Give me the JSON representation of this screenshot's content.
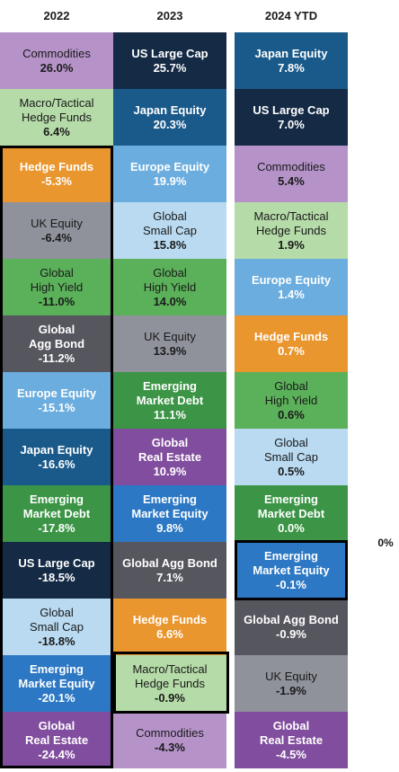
{
  "chart_data": {
    "type": "table",
    "title": "",
    "zero_label": "0%",
    "columns": [
      {
        "year": "2022",
        "cells": [
          {
            "name": "Commodities",
            "value": "26.0%",
            "color": "#b593c9",
            "text": "#1a1a1a",
            "bold_name": false
          },
          {
            "name": "Macro/Tactical\nHedge Funds",
            "value": "6.4%",
            "color": "#b5dba8",
            "text": "#1a1a1a",
            "bold_name": false
          },
          {
            "name": "Hedge Funds",
            "value": "-5.3%",
            "color": "#ea962f",
            "text": "#ffffff",
            "bold_name": true
          },
          {
            "name": "UK Equity",
            "value": "-6.4%",
            "color": "#8f929b",
            "text": "#1a1a1a",
            "bold_name": false
          },
          {
            "name": "Global\nHigh Yield",
            "value": "-11.0%",
            "color": "#5bb15a",
            "text": "#1a1a1a",
            "bold_name": false
          },
          {
            "name": "Global\nAgg Bond",
            "value": "-11.2%",
            "color": "#56565f",
            "text": "#ffffff",
            "bold_name": true
          },
          {
            "name": "Europe Equity",
            "value": "-15.1%",
            "color": "#6badde",
            "text": "#ffffff",
            "bold_name": true
          },
          {
            "name": "Japan Equity",
            "value": "-16.6%",
            "color": "#1a5a8a",
            "text": "#ffffff",
            "bold_name": true
          },
          {
            "name": "Emerging\nMarket Debt",
            "value": "-17.8%",
            "color": "#3c9546",
            "text": "#ffffff",
            "bold_name": true
          },
          {
            "name": "US Large Cap",
            "value": "-18.5%",
            "color": "#142a45",
            "text": "#ffffff",
            "bold_name": true
          },
          {
            "name": "Global\nSmall Cap",
            "value": "-18.8%",
            "color": "#b9daf1",
            "text": "#1a1a1a",
            "bold_name": false
          },
          {
            "name": "Emerging\nMarket Equity",
            "value": "-20.1%",
            "color": "#2d78c4",
            "text": "#ffffff",
            "bold_name": true
          },
          {
            "name": "Global\nReal Estate",
            "value": "-24.4%",
            "color": "#814d9e",
            "text": "#ffffff",
            "bold_name": true
          }
        ]
      },
      {
        "year": "2023",
        "cells": [
          {
            "name": "US Large Cap",
            "value": "25.7%",
            "color": "#142a45",
            "text": "#ffffff",
            "bold_name": true
          },
          {
            "name": "Japan Equity",
            "value": "20.3%",
            "color": "#1a5a8a",
            "text": "#ffffff",
            "bold_name": true
          },
          {
            "name": "Europe Equity",
            "value": "19.9%",
            "color": "#6badde",
            "text": "#ffffff",
            "bold_name": true
          },
          {
            "name": "Global\nSmall Cap",
            "value": "15.8%",
            "color": "#b9daf1",
            "text": "#1a1a1a",
            "bold_name": false
          },
          {
            "name": "Global\nHigh Yield",
            "value": "14.0%",
            "color": "#5bb15a",
            "text": "#1a1a1a",
            "bold_name": false
          },
          {
            "name": "UK Equity",
            "value": "13.9%",
            "color": "#8f929b",
            "text": "#1a1a1a",
            "bold_name": false
          },
          {
            "name": "Emerging\nMarket Debt",
            "value": "11.1%",
            "color": "#3c9546",
            "text": "#ffffff",
            "bold_name": true
          },
          {
            "name": "Global\nReal Estate",
            "value": "10.9%",
            "color": "#814d9e",
            "text": "#ffffff",
            "bold_name": true
          },
          {
            "name": "Emerging\nMarket Equity",
            "value": "9.8%",
            "color": "#2d78c4",
            "text": "#ffffff",
            "bold_name": true
          },
          {
            "name": "Global Agg Bond",
            "value": "7.1%",
            "color": "#56565f",
            "text": "#ffffff",
            "bold_name": true
          },
          {
            "name": "Hedge Funds",
            "value": "6.6%",
            "color": "#ea962f",
            "text": "#ffffff",
            "bold_name": true
          },
          {
            "name": "Macro/Tactical\nHedge Funds",
            "value": "-0.9%",
            "color": "#b5dba8",
            "text": "#1a1a1a",
            "bold_name": false
          },
          {
            "name": "Commodities",
            "value": "-4.3%",
            "color": "#b593c9",
            "text": "#1a1a1a",
            "bold_name": false
          }
        ]
      },
      {
        "year": "2024 YTD",
        "cells": [
          {
            "name": "Japan Equity",
            "value": "7.8%",
            "color": "#1a5a8a",
            "text": "#ffffff",
            "bold_name": true
          },
          {
            "name": "US Large Cap",
            "value": "7.0%",
            "color": "#142a45",
            "text": "#ffffff",
            "bold_name": true
          },
          {
            "name": "Commodities",
            "value": "5.4%",
            "color": "#b593c9",
            "text": "#1a1a1a",
            "bold_name": false
          },
          {
            "name": "Macro/Tactical\nHedge Funds",
            "value": "1.9%",
            "color": "#b5dba8",
            "text": "#1a1a1a",
            "bold_name": false
          },
          {
            "name": "Europe Equity",
            "value": "1.4%",
            "color": "#6badde",
            "text": "#ffffff",
            "bold_name": true
          },
          {
            "name": "Hedge Funds",
            "value": "0.7%",
            "color": "#ea962f",
            "text": "#ffffff",
            "bold_name": true
          },
          {
            "name": "Global\nHigh Yield",
            "value": "0.6%",
            "color": "#5bb15a",
            "text": "#1a1a1a",
            "bold_name": false
          },
          {
            "name": "Global\nSmall Cap",
            "value": "0.5%",
            "color": "#b9daf1",
            "text": "#1a1a1a",
            "bold_name": false
          },
          {
            "name": "Emerging\nMarket Debt",
            "value": "0.0%",
            "color": "#3c9546",
            "text": "#ffffff",
            "bold_name": true
          },
          {
            "name": "Emerging\nMarket Equity",
            "value": "-0.1%",
            "color": "#2d78c4",
            "text": "#ffffff",
            "bold_name": true
          },
          {
            "name": "Global Agg Bond",
            "value": "-0.9%",
            "color": "#56565f",
            "text": "#ffffff",
            "bold_name": true
          },
          {
            "name": "UK Equity",
            "value": "-1.9%",
            "color": "#8f929b",
            "text": "#1a1a1a",
            "bold_name": false
          },
          {
            "name": "Global\nReal Estate",
            "value": "-4.5%",
            "color": "#814d9e",
            "text": "#ffffff",
            "bold_name": true
          }
        ]
      }
    ]
  }
}
